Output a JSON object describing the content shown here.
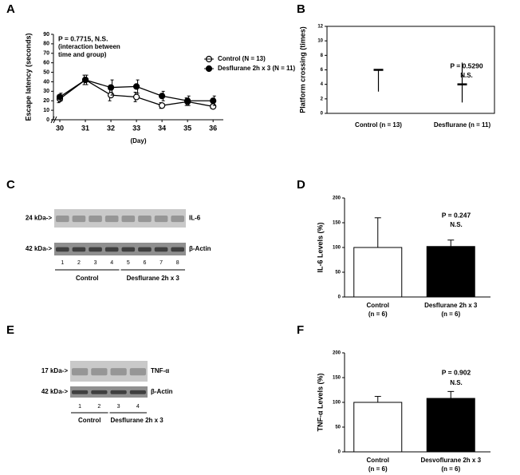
{
  "panel_labels": [
    "A",
    "B",
    "C",
    "D",
    "E",
    "F"
  ],
  "chart_data": [
    {
      "type": "line",
      "ylabel": "Escape latency (seconds)",
      "xlabel": "(Day)",
      "x": [
        30,
        31,
        32,
        33,
        34,
        35,
        36
      ],
      "xlim": [
        29.75,
        36.4
      ],
      "xticks": [
        30,
        31,
        32,
        33,
        34,
        35,
        36
      ],
      "ylim": [
        0,
        90
      ],
      "yticks": [
        0,
        10,
        20,
        30,
        40,
        50,
        60,
        70,
        80,
        90
      ],
      "annotation": [
        "P = 0.7715, N.S.",
        "(interaction between",
        "time and group)"
      ],
      "series": [
        {
          "name": "Control (N = 13)",
          "color": "#000000",
          "fill": "#ffffff",
          "values": [
            22,
            42,
            26,
            24,
            15,
            19,
            14
          ],
          "errors": [
            4,
            5,
            6,
            5,
            3,
            4,
            2
          ]
        },
        {
          "name": "Desflurane 2h x 3 (N = 11)",
          "color": "#000000",
          "fill": "#000000",
          "values": [
            24,
            42,
            34,
            35,
            25,
            20,
            20
          ],
          "errors": [
            4,
            5,
            8,
            7,
            5,
            5,
            5
          ]
        }
      ]
    },
    {
      "type": "range",
      "ylabel": "Platform crossing (times)",
      "categories": [
        "Control (n = 13)",
        "Desflurane (n = 11)"
      ],
      "values": [
        6,
        4
      ],
      "lower": [
        3,
        1.5
      ],
      "upper": [
        6,
        7
      ],
      "ylim": [
        0,
        12
      ],
      "yticks": [
        0,
        2,
        4,
        6,
        8,
        10,
        12
      ],
      "annotation": [
        "P = 0.5290",
        "N.S."
      ]
    },
    {
      "type": "bar",
      "ylabel": "IL-6 Levels (%)",
      "categories": [
        "Control",
        "Desflurane 2h x 3"
      ],
      "category_notes": [
        "(n = 6)",
        "(n = 6)"
      ],
      "values": [
        100,
        102
      ],
      "errors": [
        60,
        13
      ],
      "colors": [
        "#ffffff",
        "#000000"
      ],
      "ylim": [
        0,
        200
      ],
      "yticks": [
        0,
        50,
        100,
        150,
        200
      ],
      "annotation": [
        "P = 0.247",
        "N.S."
      ]
    },
    {
      "type": "bar",
      "ylabel": "TNF-α Levels (%)",
      "categories": [
        "Control",
        "Desvoflurane 2h x 3"
      ],
      "category_notes": [
        "(n = 6)",
        "(n = 6)"
      ],
      "values": [
        100,
        108
      ],
      "errors": [
        12,
        14
      ],
      "colors": [
        "#ffffff",
        "#000000"
      ],
      "ylim": [
        0,
        200
      ],
      "yticks": [
        0,
        50,
        100,
        150,
        200
      ],
      "annotation": [
        "P = 0.902",
        "N.S."
      ]
    }
  ],
  "blots": [
    {
      "markers": [
        "24 kDa->",
        "42 kDa->"
      ],
      "bands": [
        "IL-6",
        "β-Actin"
      ],
      "lanes": [
        1,
        2,
        3,
        4,
        5,
        6,
        7,
        8
      ],
      "groups": [
        "Control",
        "Desflurane 2h x 3"
      ]
    },
    {
      "markers": [
        "17 kDa->",
        "42 kDa->"
      ],
      "bands": [
        "TNF-α",
        "β-Actin"
      ],
      "lanes": [
        1,
        2,
        3,
        4
      ],
      "groups": [
        "Control",
        "Desflurane 2h x 3"
      ]
    }
  ]
}
